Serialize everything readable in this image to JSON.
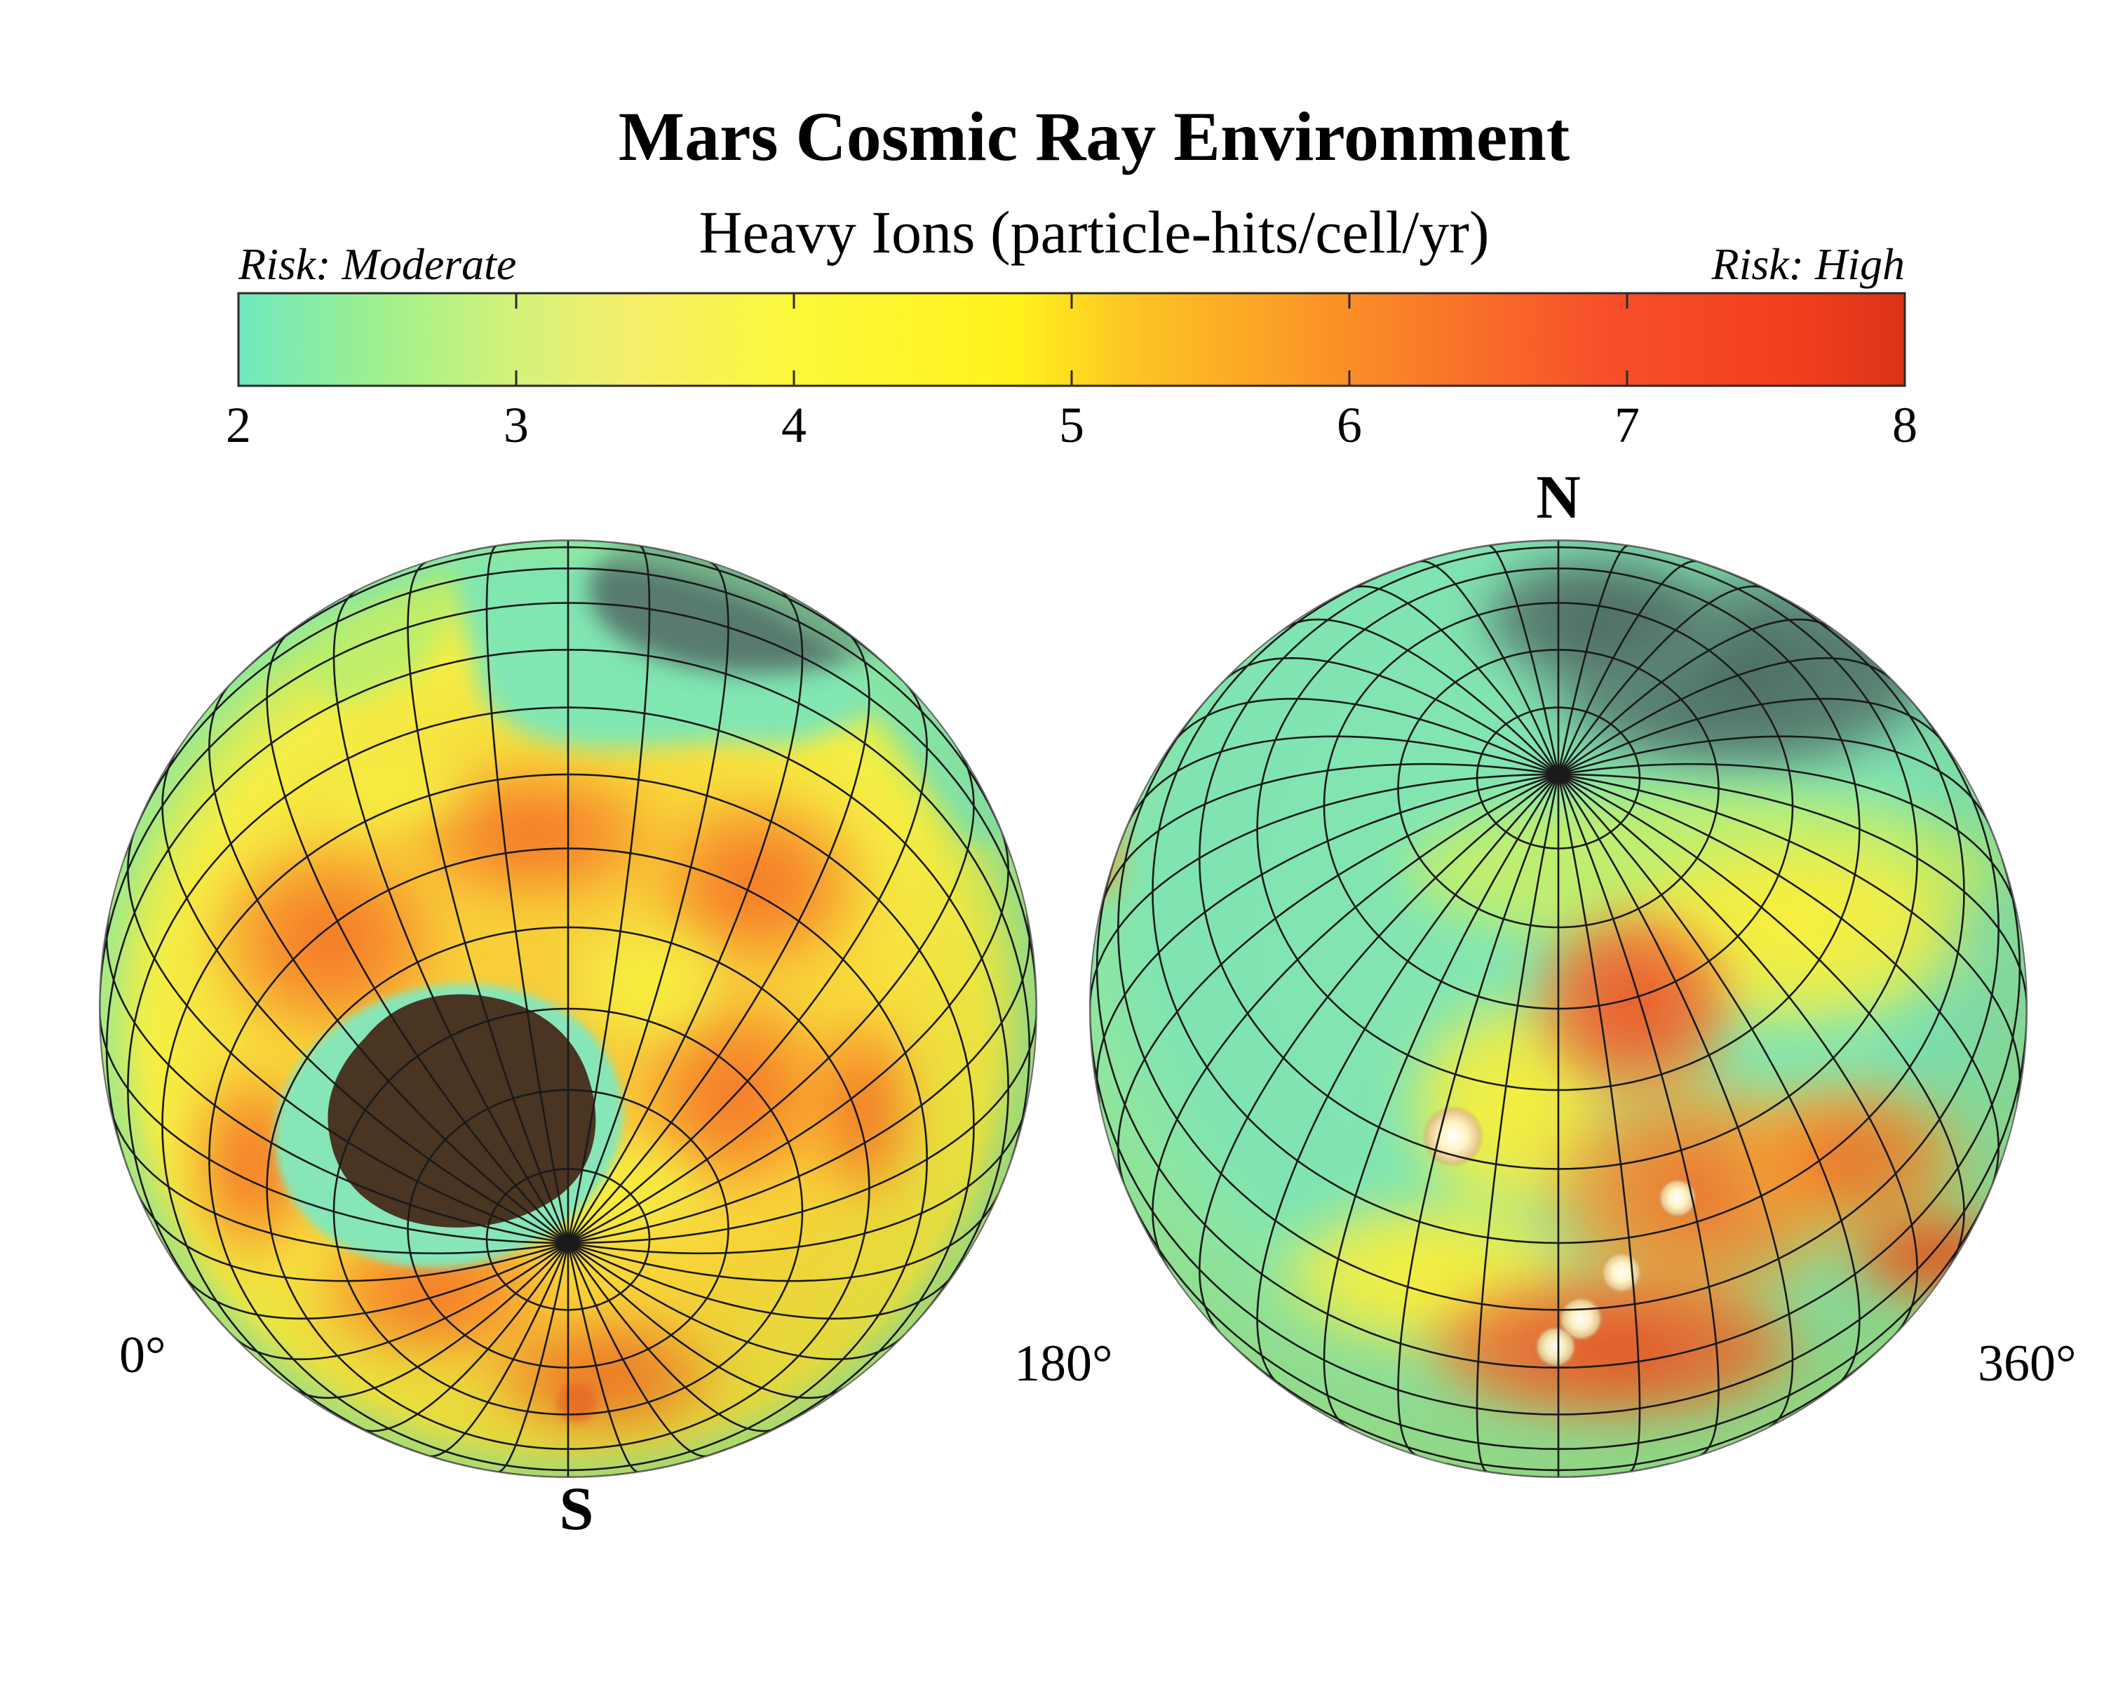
{
  "title": "Mars Cosmic Ray Environment",
  "subtitle": "Heavy Ions (particle-hits/cell/yr)",
  "risk_low_label": "Risk: Moderate",
  "risk_high_label": "Risk: High",
  "colorbar": {
    "min": 2,
    "max": 8,
    "ticks": [
      "2",
      "3",
      "4",
      "5",
      "6",
      "7",
      "8"
    ],
    "stops": [
      {
        "value": 2.0,
        "color": "#6fe8c0"
      },
      {
        "value": 2.5,
        "color": "#9ef08e"
      },
      {
        "value": 3.0,
        "color": "#d4f27a"
      },
      {
        "value": 3.4,
        "color": "#f4ee6a"
      },
      {
        "value": 4.0,
        "color": "#fcf83a"
      },
      {
        "value": 4.8,
        "color": "#fff21c"
      },
      {
        "value": 5.2,
        "color": "#fcc624"
      },
      {
        "value": 5.8,
        "color": "#fb9c26"
      },
      {
        "value": 6.3,
        "color": "#f97928"
      },
      {
        "value": 6.9,
        "color": "#f7502a"
      },
      {
        "value": 7.6,
        "color": "#f33e1e"
      },
      {
        "value": 8.0,
        "color": "#d93418"
      }
    ]
  },
  "globes": [
    {
      "longitude_start_label": "0°",
      "longitude_end_label": "180°",
      "pole_label": "S",
      "pole": "south"
    },
    {
      "longitude_start_label": "",
      "longitude_end_label": "360°",
      "pole_label": "N",
      "pole": "north"
    }
  ],
  "colors": {
    "ocean_green": "#7fe6b6",
    "lowland_green": "#8ee8a8",
    "polar_dark": "#4c6e64",
    "basin_dark": "#4a3422",
    "yellow": "#f8ef3a",
    "orange": "#f8982a",
    "red_orange": "#f05c28",
    "volcano_peak": "#fff3c8",
    "grid": "#1a1a1a"
  }
}
